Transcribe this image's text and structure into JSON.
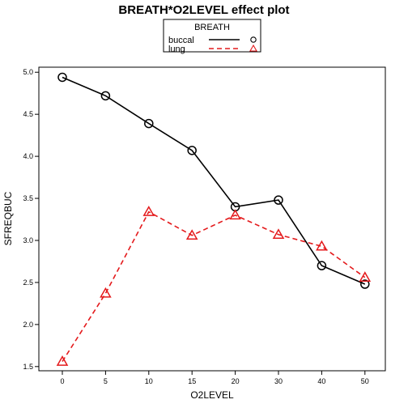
{
  "chart_data": {
    "type": "line",
    "title": "BREATH*O2LEVEL effect plot",
    "xlabel": "O2LEVEL",
    "ylabel": "SFREQBUC",
    "categories": [
      "0",
      "5",
      "10",
      "15",
      "20",
      "30",
      "40",
      "50"
    ],
    "yticks": [
      "1.5",
      "2.0",
      "2.5",
      "3.0",
      "3.5",
      "4.0",
      "4.5",
      "5.0"
    ],
    "ylim": [
      1.45,
      5.06
    ],
    "grid": false,
    "legend": {
      "title": "BREATH",
      "placement": "top-center"
    },
    "series": [
      {
        "name": "buccal",
        "values": [
          4.94,
          4.72,
          4.39,
          4.07,
          3.4,
          3.48,
          2.7,
          2.48
        ],
        "color": "#000000",
        "line_style": "solid",
        "marker": "circle"
      },
      {
        "name": "lung",
        "values": [
          1.56,
          2.37,
          3.34,
          3.06,
          3.3,
          3.07,
          2.93,
          2.56
        ],
        "color": "#e41a1c",
        "line_style": "dashed",
        "marker": "triangle"
      }
    ]
  }
}
